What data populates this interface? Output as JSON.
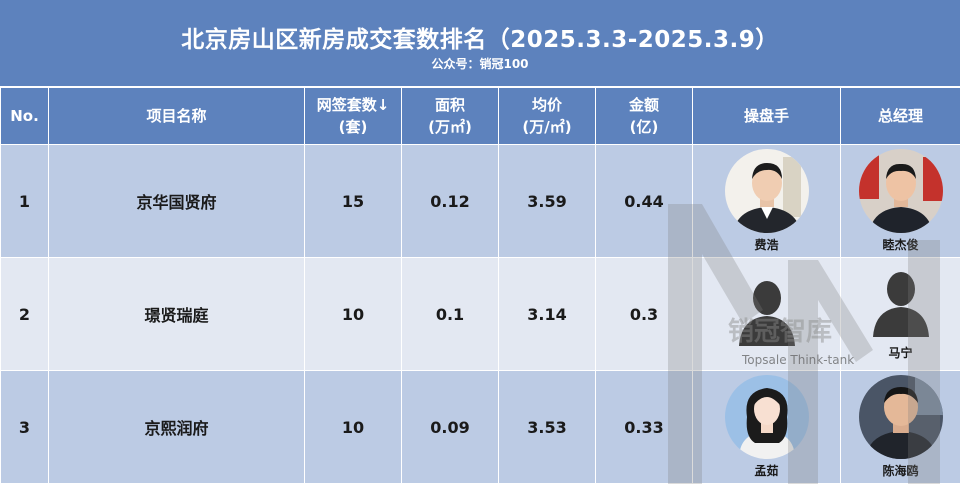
{
  "header": {
    "title": "北京房山区新房成交套数排名（2025.3.3-2025.3.9）",
    "subtitle": "公众号：销冠100"
  },
  "columns": {
    "no": "No.",
    "name": "项目名称",
    "units_line1": "网签套数↓",
    "units_line2": "(套)",
    "area_line1": "面积",
    "area_line2": "(万㎡)",
    "price_line1": "均价",
    "price_line2": "(万/㎡)",
    "amount_line1": "金额",
    "amount_line2": "(亿)",
    "operator": "操盘手",
    "gm": "总经理"
  },
  "rows": [
    {
      "no": "1",
      "name": "京华国贤府",
      "units": "15",
      "area": "0.12",
      "price": "3.59",
      "amount": "0.44",
      "operator": "费浩",
      "gm": "睦杰俊"
    },
    {
      "no": "2",
      "name": "璟贤瑞庭",
      "units": "10",
      "area": "0.1",
      "price": "3.14",
      "amount": "0.3",
      "operator": "",
      "gm": "马宁"
    },
    {
      "no": "3",
      "name": "京熙润府",
      "units": "10",
      "area": "0.09",
      "price": "3.53",
      "amount": "0.33",
      "operator": "孟茹",
      "gm": "陈海鸥"
    }
  ],
  "watermark": {
    "cn": "销冠智库",
    "en": "Topsale Think-tank"
  },
  "colors": {
    "header_blue": "#5d82bd",
    "row_dark": "#bccbe4",
    "row_light": "#e3e8f2"
  }
}
